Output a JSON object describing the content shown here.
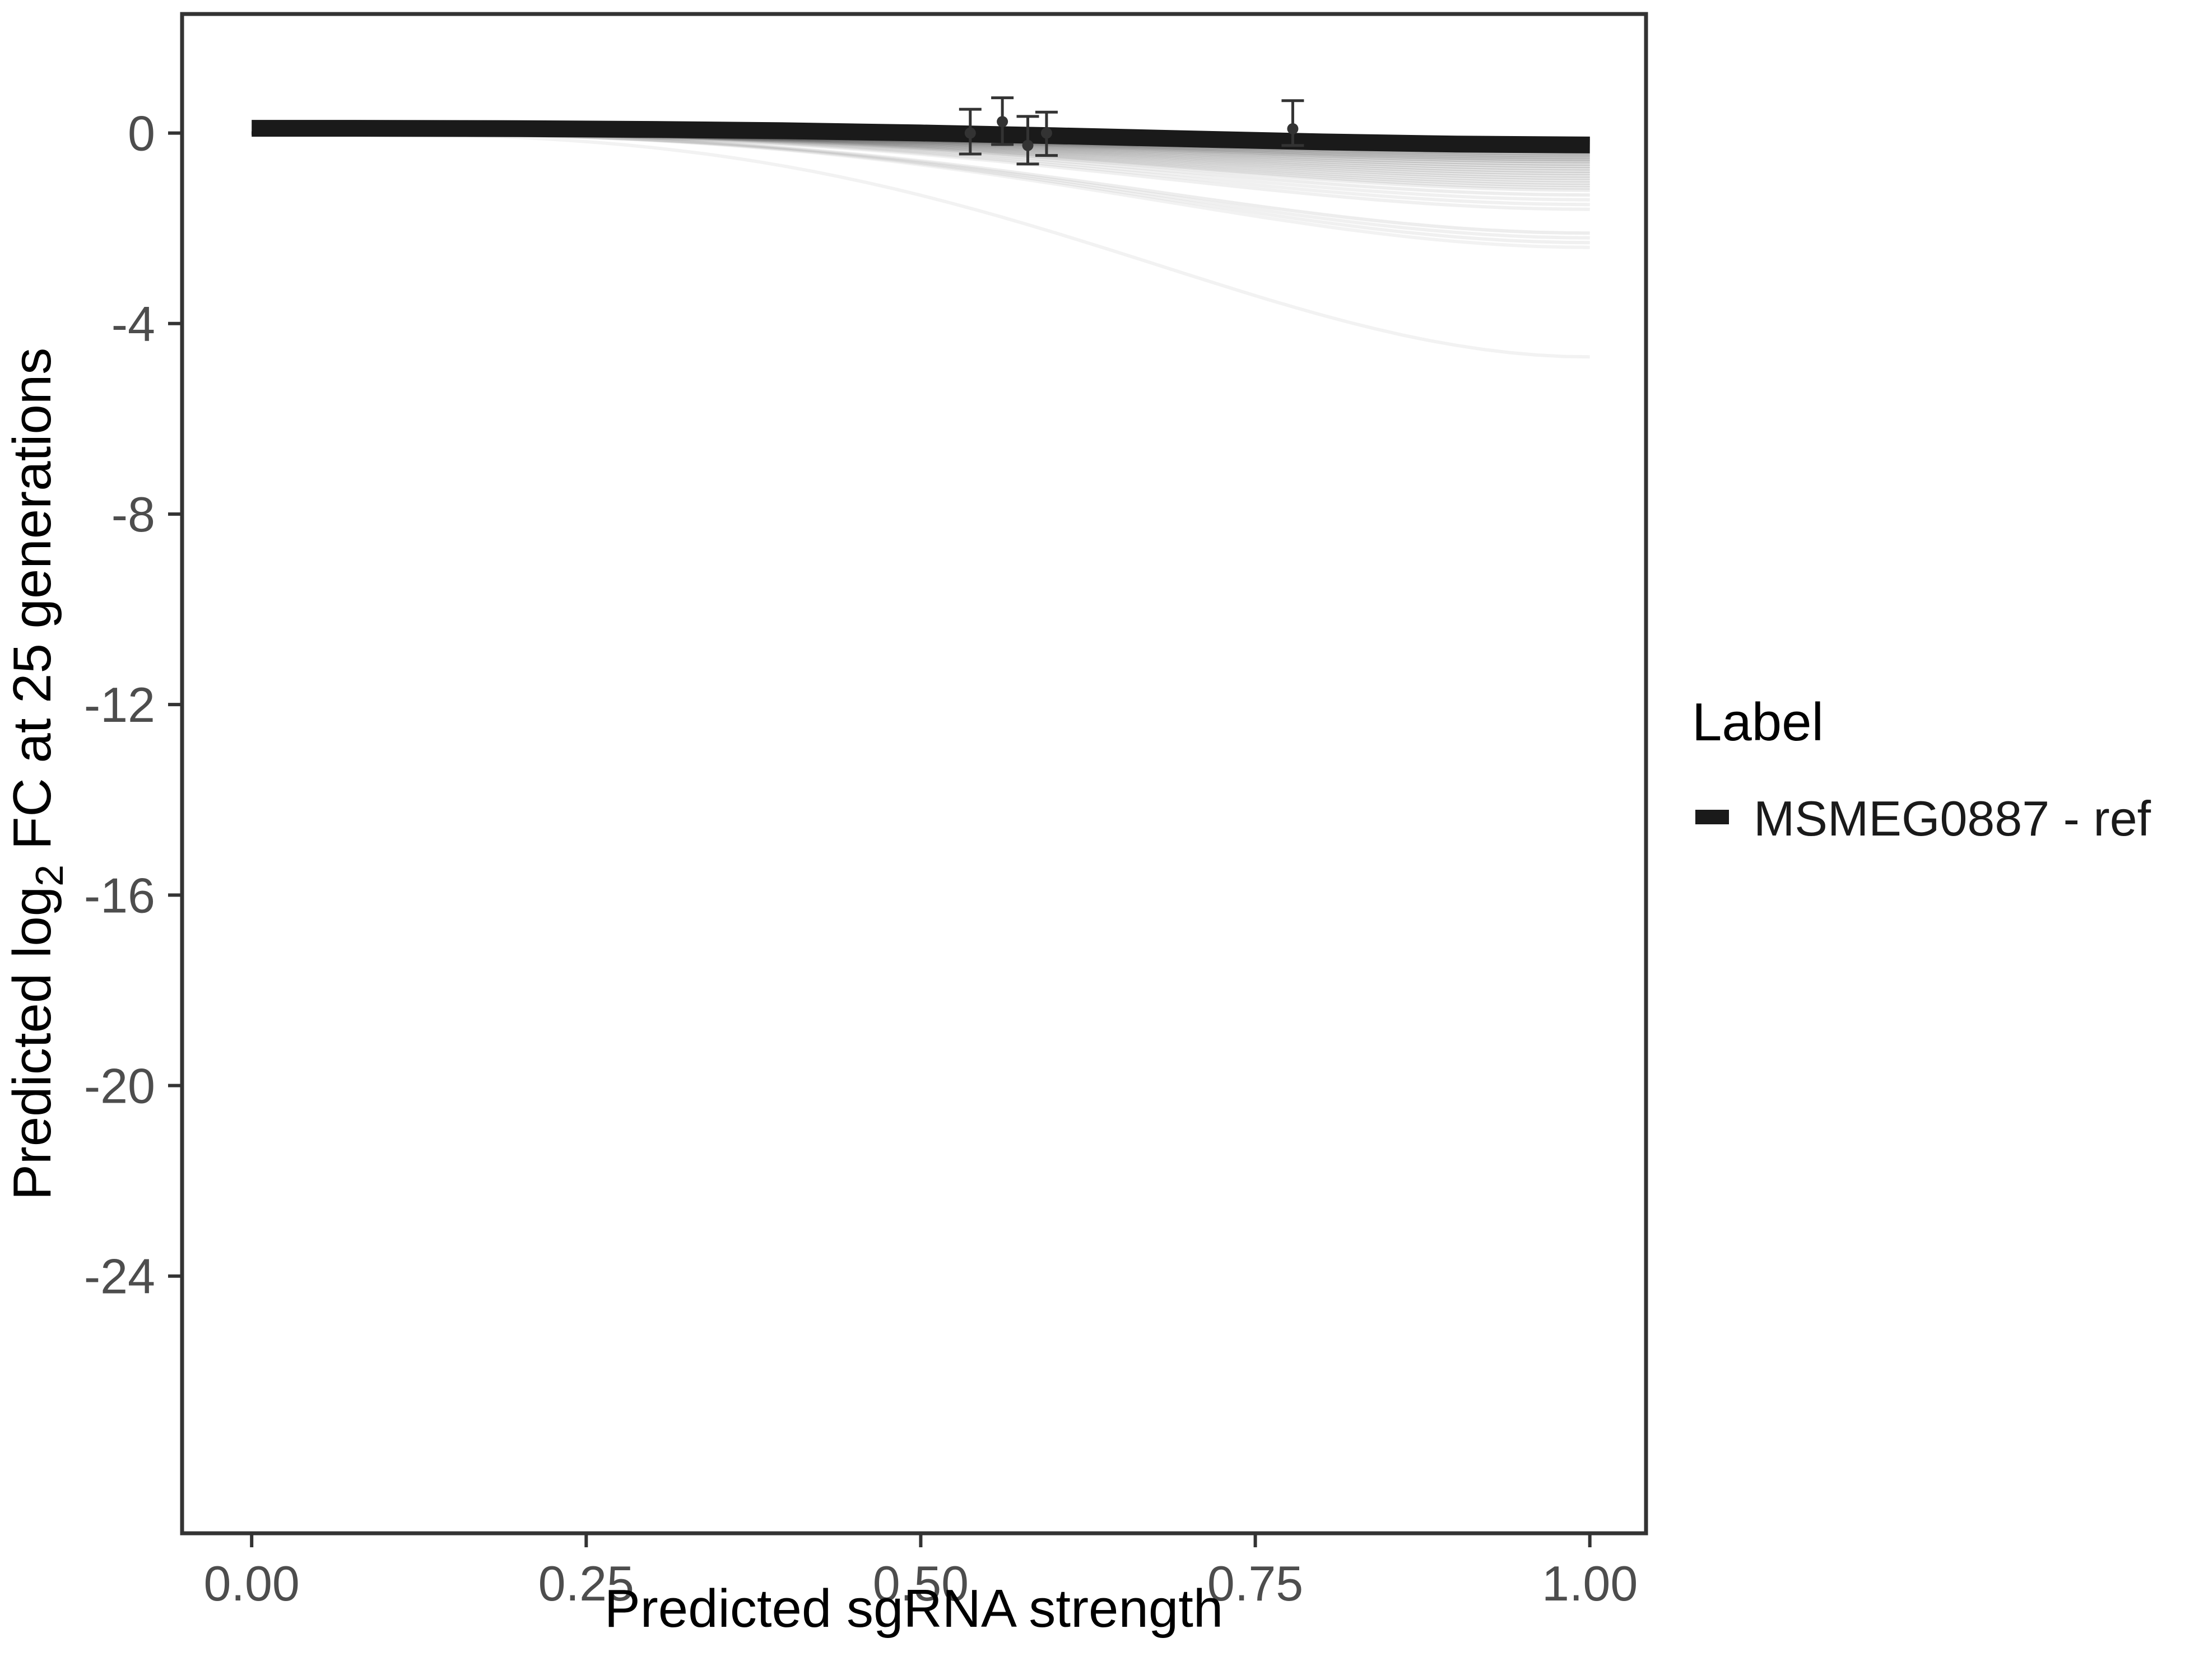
{
  "figure": {
    "background": "#ffffff"
  },
  "legend": {
    "title": "Label",
    "position": "right",
    "entries": [
      {
        "label": "MSMEG0887 - ref",
        "color": "#1a1a1a",
        "key_shape": "thick-line"
      }
    ]
  },
  "chart_data": {
    "type": "line",
    "title": "",
    "xlabel": "Predicted sgRNA strength",
    "ylabel": "Predicted log₂ FC at 25 generations",
    "ylabel_parts": {
      "pre": "Predicted log",
      "sub": "2",
      "post": " FC at 25 generations"
    },
    "grid": false,
    "legend_position": "right",
    "xlim": [
      -0.052,
      1.042
    ],
    "ylim": [
      -29.4,
      2.5
    ],
    "x_ticks": [
      "0.00",
      "0.25",
      "0.50",
      "0.75",
      "1.00"
    ],
    "x_tick_values": [
      0,
      0.25,
      0.5,
      0.75,
      1.0
    ],
    "y_ticks": [
      "0",
      "-4",
      "-8",
      "-12",
      "-16",
      "-20",
      "-24"
    ],
    "y_tick_values": [
      0,
      -4,
      -8,
      -12,
      -16,
      -20,
      -24
    ],
    "series": [
      {
        "name": "MSMEG0887 - ref",
        "color": "#1a1a1a",
        "stroke_width": 30,
        "x": [
          0,
          0.1,
          0.2,
          0.3,
          0.4,
          0.5,
          0.6,
          0.7,
          0.8,
          0.9,
          1.0
        ],
        "y": [
          0.1,
          0.099,
          0.093,
          0.077,
          0.048,
          0.003,
          -0.056,
          -0.122,
          -0.185,
          -0.232,
          -0.25
        ]
      }
    ],
    "posterior_sample_lines": {
      "description": "faint grey posterior draws, flat at x=0 then sigmoidal decline to end value at x=1",
      "color": "#000000",
      "stroke_width": 6,
      "shape_power": 1.5,
      "end_values": [
        -0.12,
        -0.16,
        -0.2,
        -0.24,
        -0.28,
        -0.32,
        -0.36,
        -0.4,
        -0.44,
        -0.48,
        -0.52,
        -0.56,
        -0.6,
        -0.65,
        -0.7,
        -0.75,
        -0.8,
        -0.85,
        -0.9,
        -0.95,
        -1.0,
        -1.05,
        -1.1,
        -1.15,
        -1.2,
        -1.3,
        -1.4,
        -1.5,
        -1.6,
        -2.1,
        -2.2,
        -2.3,
        -2.4,
        -4.7
      ],
      "opacities": [
        0.35,
        0.32,
        0.3,
        0.28,
        0.26,
        0.24,
        0.22,
        0.2,
        0.18,
        0.17,
        0.16,
        0.15,
        0.14,
        0.13,
        0.12,
        0.11,
        0.1,
        0.1,
        0.09,
        0.09,
        0.08,
        0.08,
        0.08,
        0.07,
        0.07,
        0.07,
        0.06,
        0.06,
        0.06,
        0.07,
        0.06,
        0.06,
        0.05,
        0.05
      ]
    },
    "points_with_error_bars": [
      {
        "x": 0.537,
        "y": 0.0,
        "ymin": -0.44,
        "ymax": 0.5
      },
      {
        "x": 0.561,
        "y": 0.24,
        "ymin": -0.24,
        "ymax": 0.74
      },
      {
        "x": 0.58,
        "y": -0.26,
        "ymin": -0.65,
        "ymax": 0.35
      },
      {
        "x": 0.594,
        "y": 0.0,
        "ymin": -0.47,
        "ymax": 0.44
      },
      {
        "x": 0.778,
        "y": 0.09,
        "ymin": -0.26,
        "ymax": 0.68
      }
    ],
    "colors": {
      "points": "#333333",
      "error_bars": "#333333",
      "axis_text": "#4d4d4d",
      "axis_title": "#000000",
      "panel_border": "#333333",
      "tick_marks": "#333333"
    }
  }
}
